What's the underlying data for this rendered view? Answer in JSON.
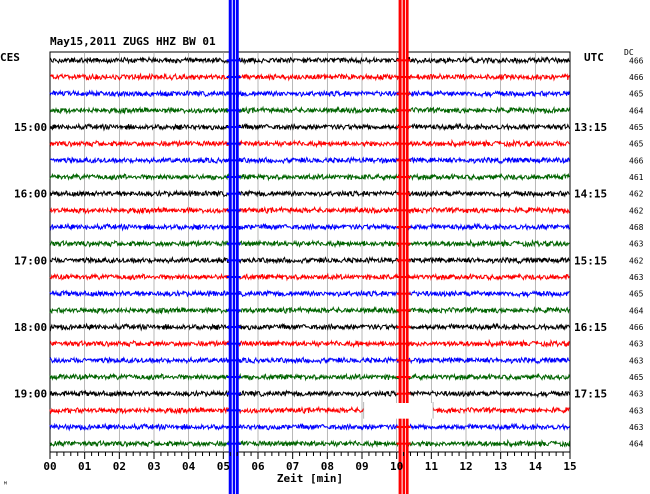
{
  "header": {
    "title": "May15,2011   ZUGS HHZ BW 01",
    "left_tz": "CES",
    "right_tz": "UTC",
    "dc_label": "DC"
  },
  "chart_data": {
    "type": "line",
    "title": "May15,2011   ZUGS HHZ BW 01",
    "xlabel": "Zeit [min]",
    "x_range": [
      0,
      15
    ],
    "x_ticks": [
      "00",
      "01",
      "02",
      "03",
      "04",
      "05",
      "06",
      "07",
      "08",
      "09",
      "10",
      "11",
      "12",
      "13",
      "14",
      "15"
    ],
    "grid": true,
    "trace_colors": [
      "#000000",
      "#ff0000",
      "#0000ff",
      "#006400"
    ],
    "left_time_labels": [
      {
        "label": "15:00",
        "row": 4
      },
      {
        "label": "16:00",
        "row": 8
      },
      {
        "label": "17:00",
        "row": 12
      },
      {
        "label": "18:00",
        "row": 16
      },
      {
        "label": "19:00",
        "row": 20
      }
    ],
    "right_time_labels": [
      {
        "label": "13:15",
        "row": 4
      },
      {
        "label": "14:15",
        "row": 8
      },
      {
        "label": "15:15",
        "row": 12
      },
      {
        "label": "16:15",
        "row": 16
      },
      {
        "label": "17:15",
        "row": 20
      }
    ],
    "dc_offsets": [
      "466",
      "466",
      "465",
      "464",
      "465",
      "465",
      "466",
      "461",
      "462",
      "462",
      "468",
      "463",
      "462",
      "463",
      "465",
      "464",
      "466",
      "463",
      "463",
      "465",
      "463",
      "463",
      "463",
      "464"
    ],
    "events": [
      {
        "minute": 5.3,
        "color": "#0000ff"
      },
      {
        "minute": 10.2,
        "color": "#ff0000"
      }
    ],
    "gaps": [
      {
        "row": 21,
        "from_minute": 9.05,
        "to_minute": 11.05
      }
    ]
  }
}
